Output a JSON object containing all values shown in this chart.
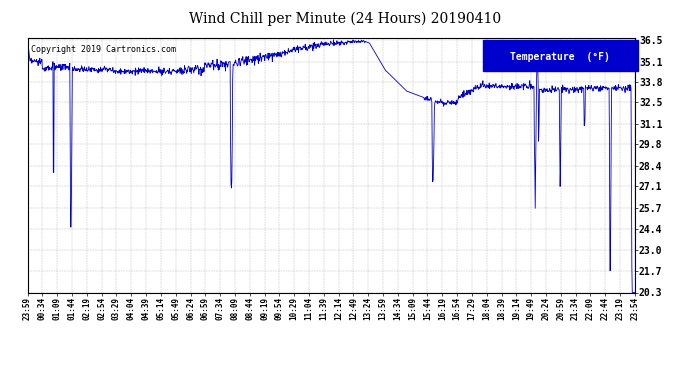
{
  "title": "Wind Chill per Minute (24 Hours) 20190410",
  "copyright": "Copyright 2019 Cartronics.com",
  "line_color": "#0000CC",
  "background_color": "#FFFFFF",
  "plot_bg_color": "#FFFFFF",
  "grid_color": "#AAAAAA",
  "ylim": [
    20.3,
    36.65
  ],
  "yticks": [
    20.3,
    21.7,
    23.0,
    24.4,
    25.7,
    27.1,
    28.4,
    29.8,
    31.1,
    32.5,
    33.8,
    35.1,
    36.5
  ],
  "xtick_labels": [
    "23:59",
    "00:34",
    "01:09",
    "01:44",
    "02:19",
    "02:54",
    "03:29",
    "04:04",
    "04:39",
    "05:14",
    "05:49",
    "06:24",
    "06:59",
    "07:34",
    "08:09",
    "08:44",
    "09:19",
    "09:54",
    "10:29",
    "11:04",
    "11:39",
    "12:14",
    "12:49",
    "13:24",
    "13:59",
    "14:34",
    "15:09",
    "15:44",
    "16:19",
    "16:54",
    "17:29",
    "18:04",
    "18:39",
    "19:14",
    "19:49",
    "20:24",
    "20:59",
    "21:34",
    "22:09",
    "22:44",
    "23:19",
    "23:54"
  ],
  "legend_label": "Temperature  (°F)",
  "legend_bg": "#0000CC",
  "legend_text_color": "#FFFFFF",
  "title_fontsize": 10,
  "copyright_fontsize": 6,
  "ytick_fontsize": 7,
  "xtick_fontsize": 5.5
}
